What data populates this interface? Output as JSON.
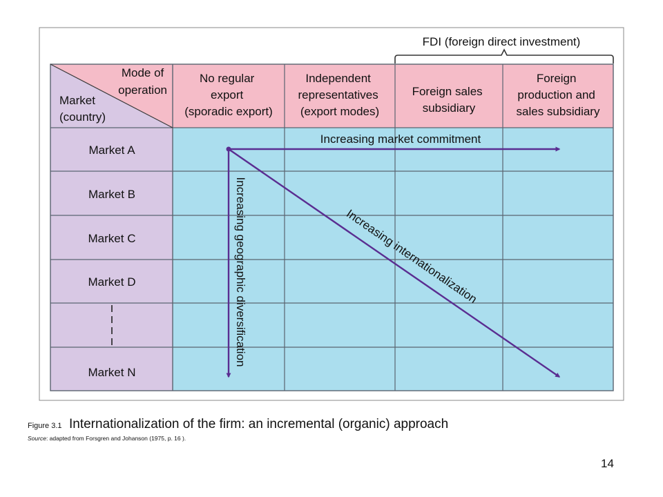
{
  "diagram": {
    "header_bracket_label": "FDI (foreign direct investment)",
    "corner": {
      "top_right": [
        "Mode of",
        "operation"
      ],
      "bottom_left": [
        "Market",
        "(country)"
      ]
    },
    "columns": [
      [
        "No regular",
        "export",
        "(sporadic export)"
      ],
      [
        "Independent",
        "representatives",
        "(export modes)"
      ],
      [
        "Foreign sales",
        "subsidiary"
      ],
      [
        "Foreign",
        "production and",
        "sales subsidiary"
      ]
    ],
    "rows": [
      "Market A",
      "Market B",
      "Market C",
      "Market D",
      "",
      "Market N"
    ],
    "arrows": {
      "horizontal": "Increasing market commitment",
      "vertical": "Increasing geographic diversification",
      "diagonal": "Increasing internationalization"
    },
    "colors": {
      "header_pink": "#f5bcc8",
      "row_lavender": "#d8c8e4",
      "cell_blue": "#abdeee",
      "arrow_purple": "#5a2d91",
      "grid_line": "#5a6470"
    }
  },
  "caption": {
    "label": "Figure 3.1",
    "title": "Internationalization of the firm: an incremental (organic) approach",
    "source_label": "Source",
    "source_text": ": adapted from Forsgren and Johanson (1975, p. 16 )."
  },
  "page_number": "14"
}
